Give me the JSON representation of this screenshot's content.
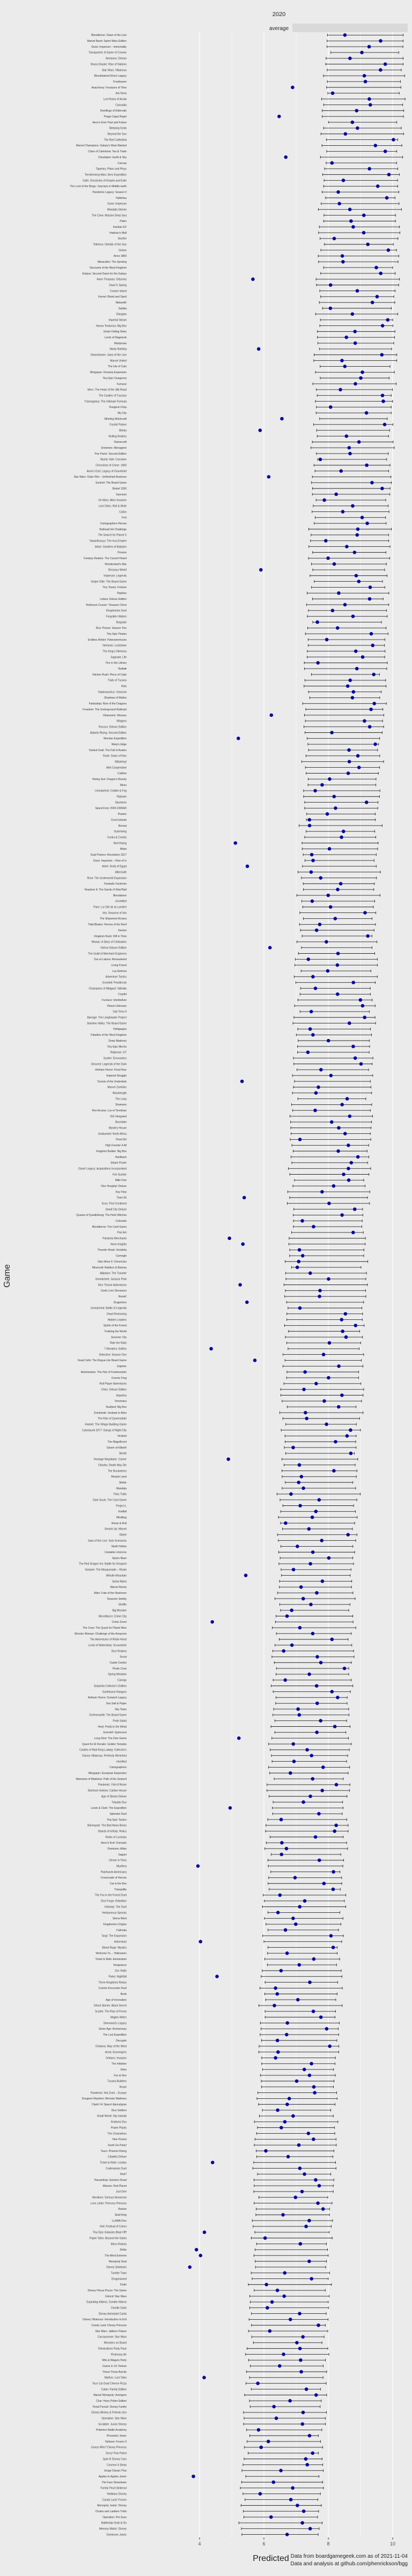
{
  "chart_data": {
    "type": "dot-interval",
    "title": "2020",
    "facet_label": "average",
    "xlabel": "Predicted",
    "ylabel": "Game",
    "xlim": [
      1.8,
      10.6
    ],
    "xticks": [
      4,
      6,
      8,
      10
    ],
    "grid": true,
    "caption_lines": [
      "Data from boardgamegeek.com as of 2021-11-04",
      "Data and analysis at github.com/phenrickson/bgg"
    ],
    "colors": {
      "point": "#0a0aa0",
      "interval": "#222222",
      "panel": "#ebebeb",
      "grid": "#ffffff",
      "strip": "#d9d9d9"
    },
    "games": [
      "Bloodborne: Dawn of the Lion",
      "Marvel Band: Sprint Wars Edition",
      "Dune: Imperium – Immortality",
      "Transparent: A Game of Crowns",
      "Iberianos: Deluxe",
      "Brass Empire: Rise of Nations",
      "Star Wars: Villainous",
      "Bloodstained Elven Legacy",
      "Frosthaven",
      "Anachrony: Fractures of Time",
      "Ark Nova",
      "Lost Ruins of Arnak",
      "Cascadia",
      "Dwellings of Eldervale",
      "Praga Caput Regni",
      "Aeon's End: Past and Future",
      "Sleeping Gods",
      "Beyond the Sun",
      "The Red Cathedral",
      "Marvel Champions: Galaxy's Most Wanted",
      "Clans of Caledonia: Tea & Trade",
      "Cloudspire: Earth & Sky",
      "Canvas",
      "Tapestry: Plans and Ploys",
      "Terraforming Mars: Ares Expedition",
      "Oath: Chronicles of Empire and Exile",
      "The Lord of the Rings: Journeys in Middle-earth",
      "Pandemic Legacy: Season 0",
      "Hallertau",
      "Dune: Imperium",
      "Mandala Stones",
      "The Crew: Mission Deep Sea",
      "Paleo",
      "Kanban EV",
      "Hadrian's Wall",
      "Bonfire",
      "Tekhenu: Obelisk of the Sun",
      "Golem",
      "Anno 1800",
      "Maracaibo: The Uprising",
      "Viscounts of the West Kingdom",
      "Eclipse: Second Dawn for the Galaxy",
      "Aeon Trespass: Odyssey",
      "Dwar7s Spring",
      "Cooper Island",
      "Kemet: Blood and Sand",
      "Nidavellir",
      "Sabika",
      "Glasgow",
      "Imperial Steam",
      "Hansa Teutonica: Big Box",
      "Under Falling Skies",
      "Lords of Ragnarok",
      "Mariposas",
      "Nanty Narking",
      "Gloomhaven: Jaws of the Lion",
      "Marvel United",
      "The Isle of Cats",
      "Wingspan: Oceania Expansion",
      "Tiny Epic Dungeons",
      "Furnace",
      "Merv: The Heart of the Silk Road",
      "The Castles of Tuscany",
      "Trismegistus: The Ultimate Formula",
      "Dungeon Drop",
      "My City",
      "Whirling Witchcraft",
      "Crystal Palace",
      "Bitoku",
      "Rolling Realms",
      "Flamecraft",
      "Dominion: Menagerie",
      "Pax Pamir: Second Edition",
      "Mystic Vale: Conclave",
      "Chronicles of Crime: 1900",
      "Aeon's End: Legacy of Gravehold",
      "Star Wars: Outer Rim – Unfinished Business",
      "Summit: The Board Game",
      "Bristol 1350",
      "Sanctum",
      "On Mars: Alien Invasion",
      "Lost Cities: Roll & Write",
      "Calico",
      "Fort",
      "Cartographers Heroes",
      "Railroad Ink Challenge",
      "The Search for Planet X",
      "Tawantinsuyu: The Inca Empire",
      "Ishtar: Gardens of Babylon",
      "Oceans",
      "Fantasy Realms: The Cursed Hoard",
      "Wonderland's War",
      "Dinosaur World",
      "Imperium: Legends",
      "Sniper Elite: The Board Game",
      "Tiny Towns: Fortune",
      "Pipeline",
      "Lisboa: Deluxe Edition",
      "Robinson Crusoe: Treasure Chest",
      "Kingdomino Duel",
      "Forgotten Waters",
      "Regicide",
      "Dice Throne: Season Two",
      "Tiny Epic Pirates",
      "Endless Winter: Paleoamericans",
      "Nemesis: Lockdown",
      "The King's Dilemma",
      "Sagrada: Life",
      "Fire in the Library",
      "Bullet♥︎",
      "Kitchen Rush: Piece of Cake",
      "Trails of Tucana",
      "Hats",
      "Hoplomachus: Victorum",
      "Shadows of Malice",
      "Fantastiqa: Rise of the Dragons",
      "Freedom: The Underground Railroad",
      "Obsession: Wessex",
      "Villagers",
      "Rococo: Deluxe Edition",
      "Atlantis Rising: Second Edition",
      "Monster Expedition",
      "Warp's Edge",
      "Tainted Grail: The Fall of Avalon",
      "Rurik: Dawn of Kiev",
      "Blitzkrieg!",
      "Mint Cooperative",
      "Cubitos",
      "Rising Sun: Dragon's Bounty",
      "Mezo",
      "Unmatched: Cobble & Fog",
      "Fliptown",
      "Skymines",
      "SpaceCorp: 2025-2300AD",
      "Praetor",
      "Coral Islands",
      "Bonsai",
      "Gutenberg",
      "Cooks & Crooks",
      "Red Rising",
      "Atiwa",
      "Dual Powers: Revolution 1917",
      "Dune: Imperium – Rise of Ix",
      "Ankh: Gods of Egypt",
      "Aftermath",
      "Root: The Underworld Expansion",
      "Fantastic Factories",
      "Hexplore It: The Sands of Shar'Ratt",
      "Bloodstone",
      "Unsettled",
      "Paris: La Cité de la Lumière",
      "Inis: Seasons of Inis",
      "The Shipwreck Arcana",
      "Tidal Blades: Heroes of the Reef",
      "Gentes",
      "Kingdom Rush: Rift in Time",
      "Mosaic: A Story of Civilization",
      "Vinhos Deluxe Edition",
      "The Guild of Merchant Explorers",
      "Ora et Labora: Remastered",
      "Living Forest",
      "Lux Aeterna",
      "Adventure Tactics",
      "Everdell: Pearlbrook",
      "Champions of Midgard: Valhalla",
      "Cryptid",
      "Furnace: Interbellum",
      "Planet Unknown",
      "Sub Terra II",
      "Barrage: The Leeghwater Project",
      "Stardew Valley: The Board Game",
      "Hellapagos",
      "Paladins of the West Kingdom",
      "Deep Madness",
      "Tiny Epic Mechs",
      "Rallyman: GT",
      "Scythe: Encounters",
      "Descent: Legends of the Dark",
      "Arkham Horror: Final Hour",
      "Imperial Struggle",
      "Tyrants of the Underdark",
      "Marvel Zombies",
      "Wavelength",
      "The Loop",
      "Shamans",
      "Res Arcana: Lux et Tenebrae",
      "ISS Vanguard",
      "Boonlake",
      "Mystery House",
      "Undaunted: North Africa",
      "Final Girl",
      "High Frontier 4 All",
      "Kingdom Builder: Big Box",
      "Hardback",
      "Steam Power",
      "Clank! Legacy: Acquisitions Incorporated",
      "Fort Sumter",
      "Mille Fiori",
      "Dice Hospital: Deluxe",
      "Key Flow",
      "Town 66",
      "Ecos: First Continent",
      "Small City Deluxe",
      "Quacks of Quedlinburg: The Herb Witches",
      "Colonists",
      "Bloodborne: The Card Game",
      "Pan Am",
      "Pandoria Merchants",
      "Neon Knights",
      "Thunder Road: Vendetta",
      "Carnegie",
      "Glen More II: Chronicles",
      "Minecraft: Builders & Biomes",
      "Altiplano: The Traveler",
      "Unmatched: Jurassic Park",
      "Dice Throne Adventures",
      "Gods Love Dinosaurs",
      "Resist!",
      "Dragomino",
      "Unmatched: Battle of Legends",
      "Dead Reckoning",
      "Hidden Leaders",
      "Spirits of the Forest",
      "Trekking the World",
      "Sorcerer City",
      "Ride the Rails",
      "7 Wonders: Edifice",
      "Detective: Season One",
      "Dead Cells: The Rogue-Lite Board Game",
      "Zapotec",
      "Abomination: The Heir of Frankenstein",
      "Cosmic Frog",
      "Roll Player Adventures",
      "Clinic: Deluxe Edition",
      "Aquatica",
      "Terramara",
      "Nusfjord: Big Box",
      "Zombicide: Undead or Alive",
      "The Rise of Queensdale",
      "Hamlet: The Village Building Game",
      "Cyberpunk 2077: Gangs of Night City",
      "Verdant",
      "The Magnificent",
      "Gloom of Kilforth",
      "Sleuth",
      "Hostage Negotiator: Career",
      "Cthulhu: Death May Die",
      "The Rocketeers",
      "Meeple Land",
      "Stellar",
      "Mandala",
      "Fairy Trails",
      "Dark Souls: The Card Game",
      "Project L",
      "Voidfall",
      "Mindbug",
      "Rome & Roll",
      "Smash Up: Marvel",
      "Oltréé",
      "Jaws of the Lion: Solo Scenarios",
      "Skulk Hollow",
      "Unstable Unicorns",
      "Space Base",
      "The Red Dragon Inn: Battle for Greyport",
      "Vampire: The Masquerade – Rivals",
      "Whistle Mountain",
      "Santa Maria",
      "Marvel Remix",
      "Alien: Fate of the Nostromo",
      "Dwarven Smithy",
      "Shelfie",
      "Big Monster",
      "MicroMacro: Crime City",
      "Crime Zoom",
      "The Crew: The Quest for Planet Nine",
      "Wonder Woman: Challenge of the Amazons",
      "The Adventures of Robin Hood",
      "Lords of Waterdeep: Scoundrels",
      "Dice Realms",
      "Scout",
      "Castle Combo",
      "Pirate Cove",
      "Spring Meadow",
      "Canopy",
      "Suburbia Collector's Edition",
      "Earthborne Rangers",
      "Arkham Horror: Dunwich Legacy",
      "Sea Salt & Paper",
      "Sky Team",
      "Dorfromantik: The Board Game",
      "Point Salad",
      "Heat: Pedal to the Metal",
      "Everdell: Spirecrest",
      "Long Shot: The Dice Game",
      "Quest for El Dorado: Golden Temples",
      "Castles of Mad King Ludwig: Collector's",
      "Disney Villainous: Perfectly Wretched",
      "Horrified",
      "Cartographers",
      "Wingspan: European Expansion",
      "Mansions of Madness: Path of the Serpent",
      "Pandemic: Fall of Rome",
      "Sherlock Holmes: Carlton House",
      "Age of Steam Deluxe",
      "Tokaido Duo",
      "Lewis & Clark: The Expedition",
      "Splendor Duel",
      "Tiny Epic Tactics",
      "Bärenpark: The Bad News Bears",
      "Shards of Infinity: Relics",
      "Robin of Locksley",
      "Aeon's End: Outcasts",
      "Dominion: Allies",
      "Sagani",
      "Dinner in Paris",
      "Mysthea",
      "Patchwork Americana",
      "Crossroads of Heroes",
      "Cat in the Box",
      "Tranquility",
      "The Fox in the Forest Duet",
      "Dice Forge: Rebellion",
      "Imhotep: The Duel",
      "Herbaceous Sprouts",
      "Sierra West",
      "Kingdomino Origins",
      "Calimala",
      "Targi: The Expansion",
      "Arboretum",
      "Blood Rage: Mystics",
      "Welcome To...: Halloween",
      "Ticket to Ride: Amsterdam",
      "Vengeance",
      "Zoo Vadis",
      "Parks: Nightfall",
      "Three Kingdoms Redux",
      "Cosmic Encounter Duel",
      "Bonk",
      "Age of Innovation",
      "Ghost Stories: Black Secret",
      "Scythe: The Rise of Fenris",
      "Maglev Metro",
      "Sherwood's Legacy",
      "Stone Age: Anniversary",
      "The Lost Expedition",
      "Decrypto",
      "Onitama: Way of the Wind",
      "Arctic Scavengers",
      "Orléans: Invasion",
      "The Initiative",
      "Kites",
      "Fox & Hen",
      "Tucana Builders",
      "Roam",
      "Pandemic: Hot Zone – Europe",
      "Dungeon Mayhem: Monster Madness",
      "Clank! In! Space! Apocalypse",
      "Dice Settlers",
      "Small World: Sky Islands",
      "Kodama Duo",
      "Power Plants",
      "The Chameleon",
      "Hive Pocket",
      "Sushi Go Party!",
      "Tsuro: Phoenix Rising",
      "Citadels Deluxe",
      "Ticket to Ride: London",
      "Codenames Duet",
      "Red7",
      "Hanamikoji: Geisha's Road",
      "Mission: Red Planet",
      "Just One",
      "Monikers: Serious Nonsense",
      "Love Letter: Princess Princess",
      "Ravine",
      "Skull King",
      "LLAMA Dice",
      "Holi: Festival of Colors",
      "Tiny Epic Galaxies Blast Off!",
      "Paper Tales: Beyond the Gates",
      "Micro Robots",
      "Strike",
      "The Mind Extreme",
      "Monopoly Deal",
      "Disney Sidekicks",
      "Tumble Town",
      "Dragonwood",
      "Dodo",
      "Disney Hocus Pocus: The Game",
      "Unlock! Star Wars",
      "Exploding Kittens: Zombie Kittens",
      "Doodle Dash",
      "Disney Animated Cards",
      "Disney Villainous: Introduction to Evil",
      "Candy Land: Disney Princess",
      "Star Wars: Jabba's Palace",
      "Carcassonne: Star Wars",
      "Monsters on Board",
      "Telestrations Party Pack",
      "Pictionary Air",
      "Wits & Wagers Party",
      "Guess in 10: Deluxe",
      "Throw Throw Burrito",
      "Mythos: Lost Tales",
      "Taco Cat Goat Cheese Pizza",
      "Catan: Family Edition",
      "Marvel Monopoly: Avengers",
      "Clue: Harry Potter Edition",
      "Trivial Pursuit: Disney Family",
      "Disney Mickey & Friends Uno",
      "Operation: Star Wars",
      "Scrabble: Junior Disney",
      "Pokémon Battle Academy",
      "Pictureka! Junior",
      "Yahtzee: Frozen II",
      "Guess Who? Disney Princess",
      "Sorry! Paw Patrol",
      "Spot It! Disney Cars",
      "Connect 4 Shots",
      "Jenga Classic Plus",
      "Apples to Apples Junior",
      "Pie Face Showdown",
      "Family Feud Strikeout",
      "Hedbanz Disney",
      "Candy Land: Frozen",
      "Monopoly Junior: Disney",
      "Chutes and Ladders Trolls",
      "Operation: Pet Scan",
      "Battleship Grab & Go",
      "Memory Match: Disney",
      "Dominoes Junior"
    ]
  }
}
